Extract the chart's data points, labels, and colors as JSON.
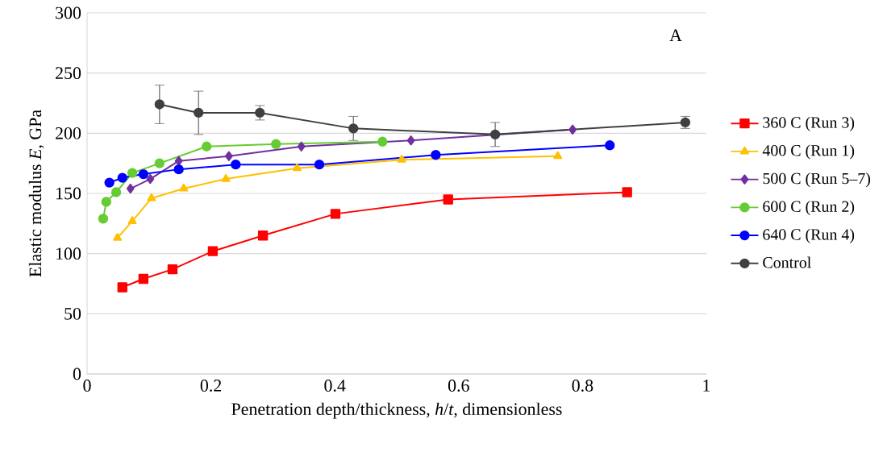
{
  "chart_data": {
    "type": "line",
    "xlabel": "Penetration depth/thickness, *h*/*t*, dimensionless",
    "ylabel": "Elastic modulus *E*, GPa",
    "annotations": [
      "A"
    ],
    "xlim": [
      0,
      1
    ],
    "ylim": [
      0,
      300
    ],
    "xticks": [
      0,
      0.2,
      0.4,
      0.6,
      0.8,
      1
    ],
    "yticks": [
      0,
      50,
      100,
      150,
      200,
      250,
      300
    ],
    "grid": "y",
    "legend": "right",
    "series": [
      {
        "name": "360 C (Run 3)",
        "color": "#ff0000",
        "marker": "square",
        "x": [
          0.057,
          0.091,
          0.138,
          0.203,
          0.284,
          0.401,
          0.583,
          0.872
        ],
        "values": [
          72,
          79,
          87,
          102,
          115,
          133,
          145,
          151
        ]
      },
      {
        "name": "400 C (Run 1)",
        "color": "#ffc000",
        "marker": "triangle",
        "x": [
          0.049,
          0.073,
          0.104,
          0.156,
          0.224,
          0.339,
          0.508,
          0.76
        ],
        "values": [
          113,
          127,
          146,
          154,
          162,
          171,
          178,
          181
        ]
      },
      {
        "name": "500 C (Run 5–7)",
        "color": "#7030a0",
        "marker": "diamond",
        "x": [
          0.07,
          0.102,
          0.148,
          0.229,
          0.346,
          0.523,
          0.784
        ],
        "values": [
          154,
          162,
          177,
          181,
          189,
          194,
          203
        ]
      },
      {
        "name": "600 C (Run 2)",
        "color": "#66cc33",
        "marker": "circle",
        "x": [
          0.026,
          0.031,
          0.047,
          0.073,
          0.117,
          0.193,
          0.305,
          0.477
        ],
        "values": [
          129,
          143,
          151,
          167,
          175,
          189,
          191,
          193
        ]
      },
      {
        "name": "640 C (Run 4)",
        "color": "#0000ff",
        "marker": "circle",
        "x": [
          0.036,
          0.057,
          0.091,
          0.148,
          0.24,
          0.375,
          0.563,
          0.844
        ],
        "values": [
          159,
          163,
          166,
          170,
          174,
          174,
          182,
          190
        ]
      },
      {
        "name": "Control",
        "color": "#404040",
        "marker": "circle",
        "x": [
          0.117,
          0.18,
          0.279,
          0.43,
          0.659,
          0.966
        ],
        "values": [
          224,
          217,
          217,
          204,
          199,
          209
        ],
        "errors": [
          16,
          18,
          6,
          10,
          10,
          5
        ]
      }
    ]
  }
}
